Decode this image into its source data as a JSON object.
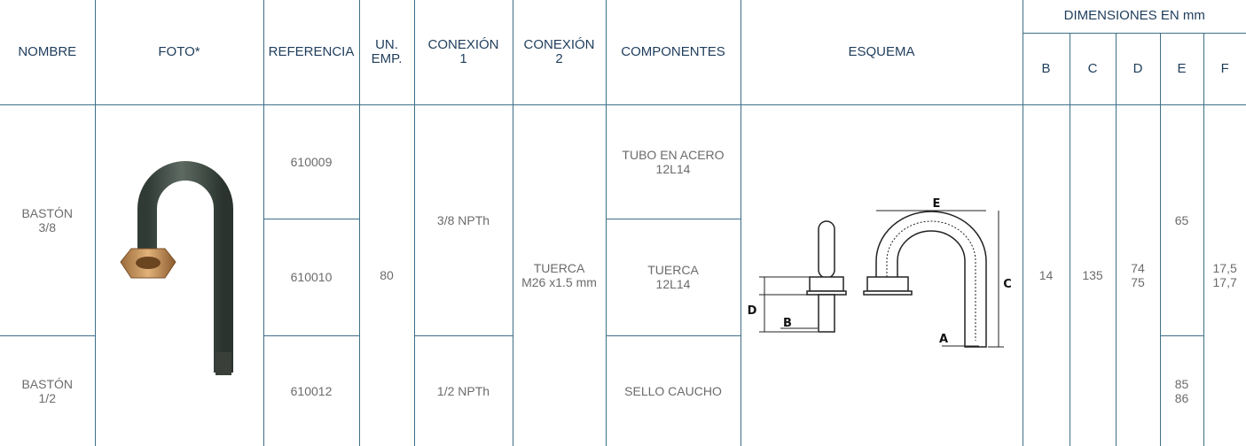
{
  "table": {
    "header": {
      "columns": [
        "NOMBRE",
        "FOTO*",
        "REFERENCIA",
        "UN.\nEMP.",
        "CONEXIÓN\n1",
        "CONEXIÓN\n2",
        "COMPONENTES",
        "ESQUEMA"
      ],
      "group": "DIMENSIONES EN mm",
      "dimensions": [
        "B",
        "C",
        "D",
        "E",
        "F"
      ]
    },
    "nombre": [
      "BASTÓN\n3/8",
      "BASTÓN\n1/2"
    ],
    "referencia": [
      "610009",
      "610010",
      "610012"
    ],
    "un_emp": "80",
    "conexion_1": [
      "3/8 NPTh",
      "1/2 NPTh"
    ],
    "conexion_2": "TUERCA\nM26 x1.5 mm",
    "componentes": [
      "TUBO EN  ACERO\n12L14",
      "TUERCA\n12L14",
      "SELLO CAUCHO"
    ],
    "esquema_labels": [
      "A",
      "B",
      "C",
      "D",
      "E"
    ],
    "dimensiones": {
      "B": "14",
      "C": "135",
      "D": "74\n75",
      "E": [
        "65",
        "85\n86"
      ],
      "F": "17,5\n17,7"
    }
  }
}
